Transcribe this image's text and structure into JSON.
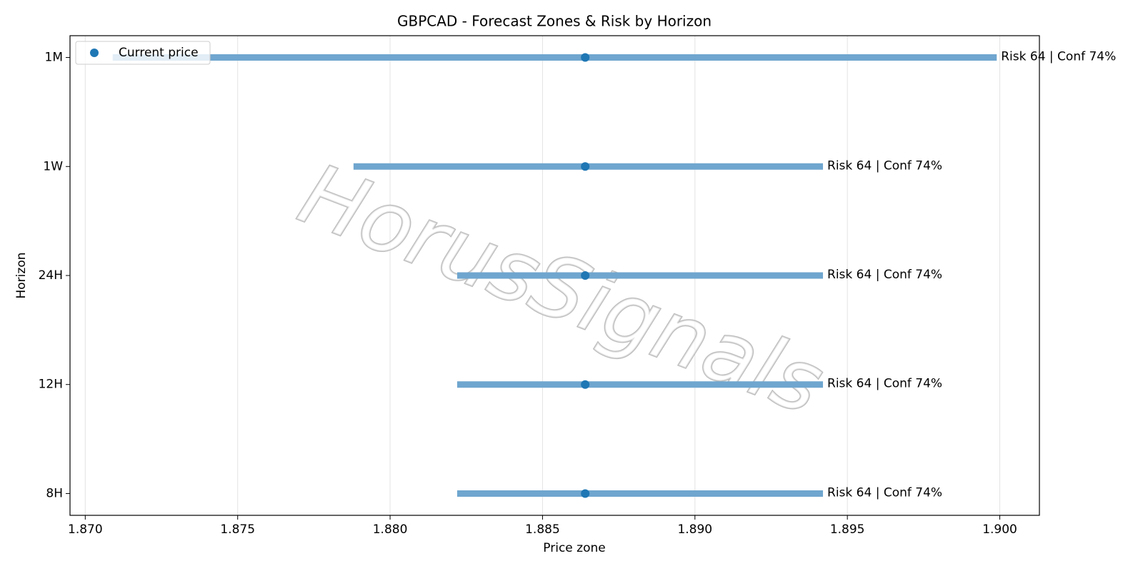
{
  "chart_data": {
    "type": "range",
    "title": "GBPCAD - Forecast Zones & Risk by Horizon",
    "xlabel": "Price zone",
    "ylabel": "Horizon",
    "categories": [
      "8H",
      "12H",
      "24H",
      "1W",
      "1M"
    ],
    "low": [
      1.8822,
      1.8822,
      1.8822,
      1.8788,
      1.8709
    ],
    "high": [
      1.8942,
      1.8942,
      1.8942,
      1.8942,
      1.8999
    ],
    "range_color": "#6fa6cf",
    "current": {
      "name": "Current price",
      "color": "#1f77b4",
      "values": [
        1.8864,
        1.8864,
        1.8864,
        1.8864,
        1.8864
      ]
    },
    "value_labels": [
      "Risk 64 | Conf 74%",
      "Risk 64 | Conf 74%",
      "Risk 64 | Conf 74%",
      "Risk 64 | Conf 74%",
      "Risk 64 | Conf 74%"
    ],
    "xlim": [
      1.8695,
      1.9013
    ],
    "xticks": [
      {
        "value": 1.87,
        "label": "1.870"
      },
      1.875,
      {
        "value": 1.88,
        "label": "1.880"
      },
      1.885,
      {
        "value": 1.89,
        "label": "1.890"
      },
      1.895,
      {
        "value": 1.9,
        "label": "1.900"
      }
    ],
    "grid": "x",
    "legend": "upper left",
    "watermark": "HorusSignals"
  }
}
